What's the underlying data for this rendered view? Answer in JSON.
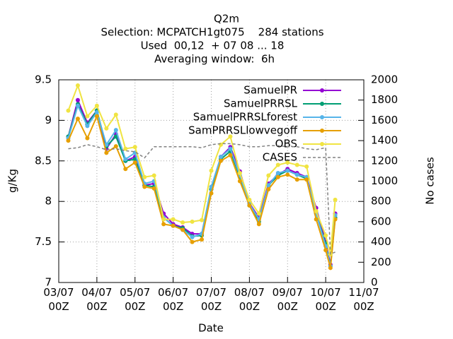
{
  "chart_data": {
    "type": "line",
    "title": "Q2m",
    "subtitle": [
      "Selection: MCPATCH1gt075    284 stations",
      "Used  00,12  + 07 08 ... 18",
      "Averaging window:  6h"
    ],
    "xlabel": "Date",
    "ylabel": "g/Kg",
    "y2label": "No cases",
    "x": [
      6,
      12,
      18,
      24,
      30,
      36,
      42,
      48,
      54,
      60,
      66,
      72,
      78,
      84,
      90,
      96,
      102,
      108,
      114,
      120,
      126,
      132,
      138,
      144,
      150,
      156,
      162,
      168,
      171,
      174
    ],
    "xlim": [
      0,
      192
    ],
    "xticks": [
      {
        "value": 0,
        "label": "03/07\n00Z"
      },
      {
        "value": 24,
        "label": "04/07\n00Z"
      },
      {
        "value": 48,
        "label": "05/07\n00Z"
      },
      {
        "value": 72,
        "label": "06/07\n00Z"
      },
      {
        "value": 96,
        "label": "07/07\n00Z"
      },
      {
        "value": 120,
        "label": "08/07\n00Z"
      },
      {
        "value": 144,
        "label": "09/07\n00Z"
      },
      {
        "value": 168,
        "label": "10/07\n00Z"
      },
      {
        "value": 192,
        "label": "11/07\n00Z"
      }
    ],
    "ylim": [
      7,
      9.5
    ],
    "yticks": [
      7,
      7.5,
      8,
      8.5,
      9,
      9.5
    ],
    "y2lim": [
      0,
      2000
    ],
    "y2ticks": [
      0,
      200,
      400,
      600,
      800,
      1000,
      1200,
      1400,
      1600,
      1800,
      2000
    ],
    "grid": true,
    "legend": "top right",
    "series": [
      {
        "name": "SamuelPR",
        "color": "#9400d3",
        "values": [
          8.8,
          9.25,
          8.97,
          9.12,
          8.65,
          8.83,
          8.5,
          8.55,
          8.2,
          8.22,
          7.85,
          7.72,
          7.68,
          7.6,
          7.6,
          8.15,
          8.55,
          8.67,
          8.37,
          7.98,
          7.8,
          8.22,
          8.33,
          8.4,
          8.35,
          8.3,
          7.92,
          7.5,
          7.22,
          7.85
        ]
      },
      {
        "name": "SamuelPRRSL",
        "color": "#009e73",
        "values": [
          8.8,
          9.2,
          8.95,
          9.12,
          8.68,
          8.8,
          8.5,
          8.52,
          8.2,
          8.18,
          7.8,
          7.7,
          7.67,
          7.57,
          7.58,
          8.15,
          8.52,
          8.62,
          8.3,
          7.95,
          7.75,
          8.2,
          8.32,
          8.38,
          8.33,
          8.28,
          7.85,
          7.48,
          7.2,
          7.8
        ]
      },
      {
        "name": "SamuelPRRSLforest",
        "color": "#56b4e9",
        "values": [
          8.78,
          9.18,
          8.93,
          9.1,
          8.7,
          8.88,
          8.52,
          8.6,
          8.22,
          8.25,
          7.8,
          7.7,
          7.65,
          7.56,
          7.6,
          8.18,
          8.55,
          8.65,
          8.32,
          7.97,
          7.78,
          8.2,
          8.35,
          8.38,
          8.33,
          8.3,
          7.85,
          7.45,
          7.2,
          7.83
        ]
      },
      {
        "name": "SamPRRSLlowvegoff",
        "color": "#e69f00",
        "values": [
          8.75,
          9.02,
          8.78,
          9.05,
          8.6,
          8.68,
          8.4,
          8.48,
          8.18,
          8.16,
          7.72,
          7.7,
          7.65,
          7.5,
          7.53,
          8.1,
          8.5,
          8.57,
          8.25,
          7.95,
          7.72,
          8.15,
          8.3,
          8.33,
          8.27,
          8.27,
          7.78,
          7.4,
          7.18,
          7.78
        ]
      },
      {
        "name": "OBS",
        "color": "#f0e442",
        "values": [
          9.12,
          9.43,
          9.05,
          9.18,
          8.9,
          9.07,
          8.65,
          8.67,
          8.3,
          8.32,
          7.78,
          7.78,
          7.74,
          7.75,
          7.77,
          8.38,
          8.7,
          8.8,
          8.35,
          8.02,
          7.85,
          8.32,
          8.45,
          8.48,
          8.45,
          8.43,
          7.88,
          7.58,
          7.35,
          8.02
        ]
      },
      {
        "name": "CASES",
        "color": "#808080",
        "axis": "y2",
        "dashed": true,
        "values": [
          1320,
          1330,
          1360,
          1340,
          1310,
          1320,
          1300,
          1290,
          1230,
          1340,
          1340,
          1340,
          1340,
          1340,
          1330,
          1360,
          1370,
          1370,
          1360,
          1340,
          1340,
          1350,
          1350,
          1340,
          1340,
          1320,
          1310,
          1330,
          280,
          300
        ]
      }
    ]
  }
}
